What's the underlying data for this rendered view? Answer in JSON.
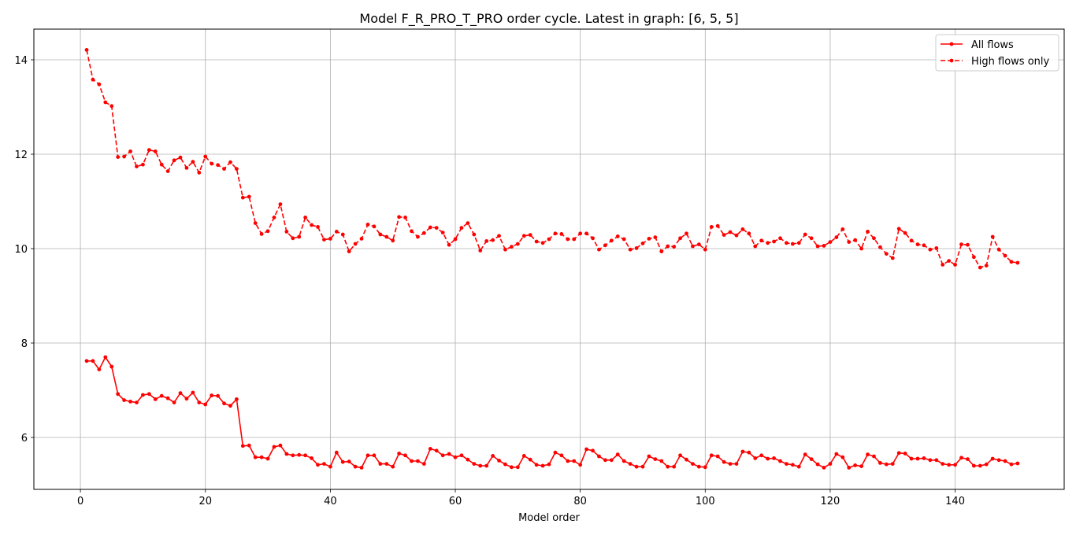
{
  "chart_data": {
    "type": "line",
    "title": "Model F_R_PRO_T_PRO order cycle. Latest in graph: [6, 5, 5]",
    "xlabel": "Model order",
    "ylabel": "",
    "xlim": [
      -7.45,
      157.45
    ],
    "ylim": [
      4.9,
      14.65
    ],
    "xticks": [
      0,
      20,
      40,
      60,
      80,
      100,
      120,
      140
    ],
    "yticks": [
      6,
      8,
      10,
      12,
      14
    ],
    "grid": true,
    "legend_position": "top-right",
    "x": [
      1,
      2,
      3,
      4,
      5,
      6,
      7,
      8,
      9,
      10,
      11,
      12,
      13,
      14,
      15,
      16,
      17,
      18,
      19,
      20,
      21,
      22,
      23,
      24,
      25,
      26,
      27,
      28,
      29,
      30,
      31,
      32,
      33,
      34,
      35,
      36,
      37,
      38,
      39,
      40,
      41,
      42,
      43,
      44,
      45,
      46,
      47,
      48,
      49,
      50,
      51,
      52,
      53,
      54,
      55,
      56,
      57,
      58,
      59,
      60,
      61,
      62,
      63,
      64,
      65,
      66,
      67,
      68,
      69,
      70,
      71,
      72,
      73,
      74,
      75,
      76,
      77,
      78,
      79,
      80,
      81,
      82,
      83,
      84,
      85,
      86,
      87,
      88,
      89,
      90,
      91,
      92,
      93,
      94,
      95,
      96,
      97,
      98,
      99,
      100,
      101,
      102,
      103,
      104,
      105,
      106,
      107,
      108,
      109,
      110,
      111,
      112,
      113,
      114,
      115,
      116,
      117,
      118,
      119,
      120,
      121,
      122,
      123,
      124,
      125,
      126,
      127,
      128,
      129,
      130,
      131,
      132,
      133,
      134,
      135,
      136,
      137,
      138,
      139,
      140,
      141,
      142,
      143,
      144,
      145,
      146,
      147,
      148,
      149,
      150
    ],
    "series": [
      {
        "name": "All flows",
        "color": "#ff0000",
        "line_style": "solid",
        "marker": "circle",
        "values": [
          7.62,
          7.62,
          7.44,
          7.7,
          7.5,
          6.92,
          6.79,
          6.76,
          6.74,
          6.9,
          6.92,
          6.81,
          6.88,
          6.83,
          6.74,
          6.94,
          6.82,
          6.95,
          6.74,
          6.7,
          6.89,
          6.88,
          6.72,
          6.67,
          6.81,
          5.82,
          5.83,
          5.58,
          5.58,
          5.55,
          5.8,
          5.83,
          5.65,
          5.62,
          5.63,
          5.62,
          5.56,
          5.42,
          5.44,
          5.38,
          5.68,
          5.48,
          5.49,
          5.38,
          5.36,
          5.62,
          5.62,
          5.44,
          5.44,
          5.38,
          5.66,
          5.62,
          5.5,
          5.5,
          5.44,
          5.76,
          5.72,
          5.62,
          5.65,
          5.58,
          5.62,
          5.53,
          5.44,
          5.4,
          5.4,
          5.61,
          5.51,
          5.43,
          5.37,
          5.37,
          5.61,
          5.53,
          5.42,
          5.4,
          5.43,
          5.68,
          5.62,
          5.5,
          5.5,
          5.42,
          5.75,
          5.72,
          5.6,
          5.52,
          5.52,
          5.64,
          5.5,
          5.44,
          5.38,
          5.38,
          5.6,
          5.54,
          5.5,
          5.38,
          5.38,
          5.62,
          5.53,
          5.44,
          5.38,
          5.37,
          5.62,
          5.6,
          5.48,
          5.44,
          5.44,
          5.7,
          5.68,
          5.56,
          5.62,
          5.55,
          5.56,
          5.5,
          5.44,
          5.42,
          5.38,
          5.64,
          5.54,
          5.43,
          5.36,
          5.44,
          5.65,
          5.58,
          5.36,
          5.41,
          5.39,
          5.64,
          5.6,
          5.46,
          5.43,
          5.44,
          5.67,
          5.66,
          5.55,
          5.55,
          5.56,
          5.52,
          5.52,
          5.44,
          5.42,
          5.42,
          5.57,
          5.54,
          5.4,
          5.4,
          5.43,
          5.55,
          5.52,
          5.5,
          5.43,
          5.45
        ]
      },
      {
        "name": "High flows only",
        "color": "#ff0000",
        "line_style": "dashed",
        "marker": "circle",
        "values": [
          14.21,
          13.58,
          13.48,
          13.1,
          13.02,
          11.94,
          11.95,
          12.06,
          11.74,
          11.78,
          12.09,
          12.06,
          11.78,
          11.64,
          11.87,
          11.93,
          11.71,
          11.84,
          11.61,
          11.95,
          11.8,
          11.77,
          11.69,
          11.83,
          11.69,
          11.08,
          11.1,
          10.54,
          10.31,
          10.37,
          10.66,
          10.94,
          10.36,
          10.22,
          10.25,
          10.66,
          10.5,
          10.46,
          10.19,
          10.21,
          10.36,
          10.3,
          9.94,
          10.1,
          10.21,
          10.51,
          10.47,
          10.3,
          10.25,
          10.17,
          10.67,
          10.66,
          10.37,
          10.25,
          10.33,
          10.45,
          10.44,
          10.34,
          10.08,
          10.2,
          10.44,
          10.54,
          10.3,
          9.96,
          10.16,
          10.18,
          10.27,
          9.98,
          10.04,
          10.1,
          10.27,
          10.29,
          10.15,
          10.12,
          10.2,
          10.32,
          10.31,
          10.2,
          10.2,
          10.32,
          10.32,
          10.22,
          9.98,
          10.07,
          10.17,
          10.26,
          10.2,
          9.98,
          10.01,
          10.11,
          10.21,
          10.24,
          9.94,
          10.05,
          10.04,
          10.22,
          10.32,
          10.05,
          10.09,
          9.98,
          10.46,
          10.48,
          10.29,
          10.35,
          10.28,
          10.41,
          10.32,
          10.05,
          10.17,
          10.12,
          10.15,
          10.22,
          10.12,
          10.1,
          10.12,
          10.3,
          10.22,
          10.05,
          10.06,
          10.14,
          10.24,
          10.41,
          10.14,
          10.18,
          10.0,
          10.36,
          10.22,
          10.03,
          9.89,
          9.8,
          10.42,
          10.33,
          10.17,
          10.09,
          10.07,
          9.98,
          10.01,
          9.66,
          9.74,
          9.66,
          10.09,
          10.08,
          9.82,
          9.6,
          9.64,
          10.25,
          9.98,
          9.85,
          9.72,
          9.7
        ]
      }
    ]
  }
}
